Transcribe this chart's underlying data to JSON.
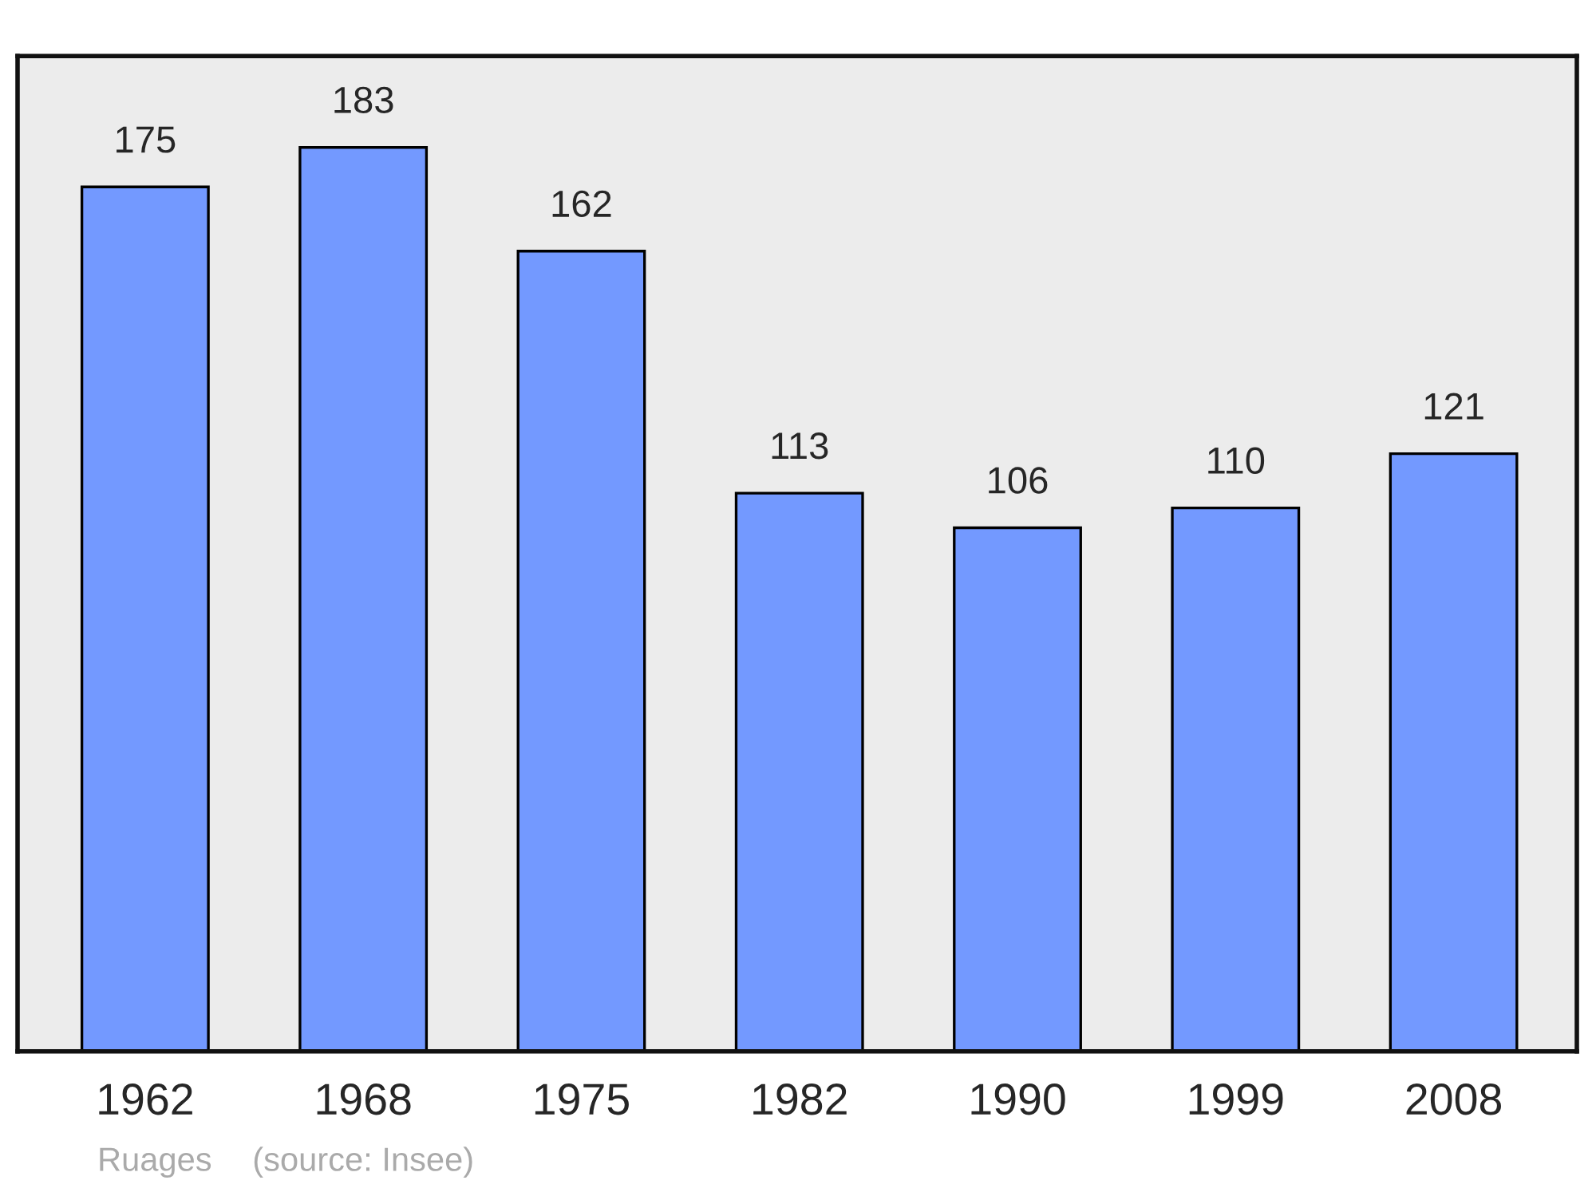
{
  "chart_data": {
    "type": "bar",
    "categories": [
      "1962",
      "1968",
      "1975",
      "1982",
      "1990",
      "1999",
      "2008"
    ],
    "values": [
      175,
      183,
      162,
      113,
      106,
      110,
      121
    ],
    "color": "#7399ff",
    "ylim": [
      0,
      201.5
    ],
    "tick_labels": "x",
    "data_labels": true,
    "grid": false,
    "annotations": [
      "Ruages",
      "(source: Insee)"
    ]
  }
}
